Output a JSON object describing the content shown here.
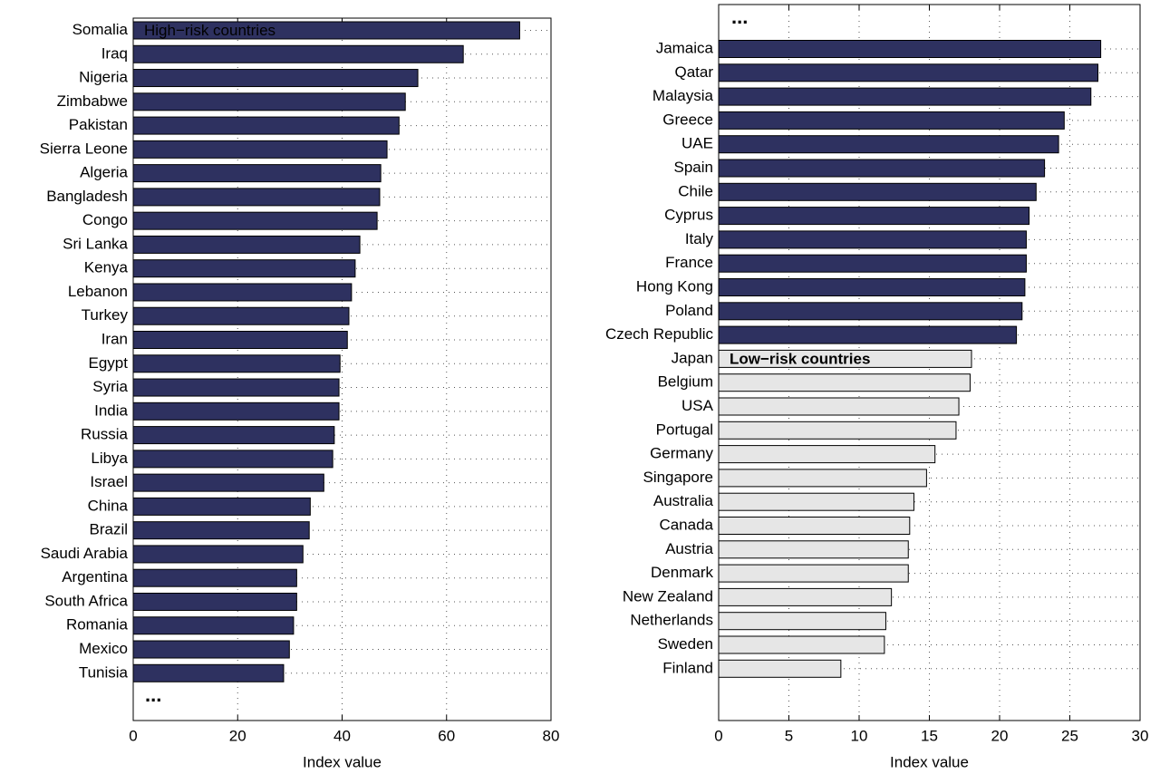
{
  "chart_data": [
    {
      "type": "barh",
      "categories": [
        "Somalia",
        "Iraq",
        "Nigeria",
        "Zimbabwe",
        "Pakistan",
        "Sierra Leone",
        "Algeria",
        "Bangladesh",
        "Congo",
        "Sri Lanka",
        "Kenya",
        "Lebanon",
        "Turkey",
        "Iran",
        "Egypt",
        "Syria",
        "India",
        "Russia",
        "Libya",
        "Israel",
        "China",
        "Brazil",
        "Saudi Arabia",
        "Argentina",
        "South Africa",
        "Romania",
        "Mexico",
        "Tunisia"
      ],
      "series": [
        {
          "name": "High−risk countries",
          "color": "#2e3160",
          "values": [
            74.0,
            63.2,
            54.5,
            52.1,
            50.9,
            48.6,
            47.4,
            47.2,
            46.7,
            43.4,
            42.5,
            41.8,
            41.3,
            41.0,
            39.6,
            39.4,
            39.4,
            38.5,
            38.2,
            36.5,
            33.9,
            33.7,
            32.5,
            31.3,
            31.3,
            30.7,
            29.9,
            28.8
          ]
        }
      ],
      "annotation": "...",
      "xlabel": "Index value",
      "xlim": [
        0,
        80
      ],
      "xticks": [
        0,
        20,
        40,
        60,
        80
      ],
      "grid": true
    },
    {
      "type": "barh",
      "categories": [
        "Jamaica",
        "Qatar",
        "Malaysia",
        "Greece",
        "UAE",
        "Spain",
        "Chile",
        "Cyprus",
        "Italy",
        "France",
        "Hong Kong",
        "Poland",
        "Czech Republic",
        "Japan",
        "Belgium",
        "USA",
        "Portugal",
        "Germany",
        "Singapore",
        "Australia",
        "Canada",
        "Austria",
        "Denmark",
        "New Zealand",
        "Netherlands",
        "Sweden",
        "Finland"
      ],
      "series": [
        {
          "color": "#2e3160",
          "values": [
            27.2,
            27.0,
            26.5,
            24.6,
            24.2,
            23.2,
            22.6,
            22.1,
            21.9,
            21.9,
            21.8,
            21.6,
            21.2,
            null,
            null,
            null,
            null,
            null,
            null,
            null,
            null,
            null,
            null,
            null,
            null,
            null,
            null
          ]
        },
        {
          "name": "Low−risk countries",
          "color": "#e6e6e6",
          "values": [
            null,
            null,
            null,
            null,
            null,
            null,
            null,
            null,
            null,
            null,
            null,
            null,
            null,
            18.0,
            17.9,
            17.1,
            16.9,
            15.4,
            14.8,
            13.9,
            13.6,
            13.5,
            13.5,
            12.3,
            11.9,
            11.8,
            8.7
          ]
        }
      ],
      "annotation": "...",
      "xlabel": "Index value",
      "xlim": [
        0,
        30
      ],
      "xticks": [
        0,
        5,
        10,
        15,
        20,
        25,
        30
      ],
      "grid": true
    }
  ]
}
